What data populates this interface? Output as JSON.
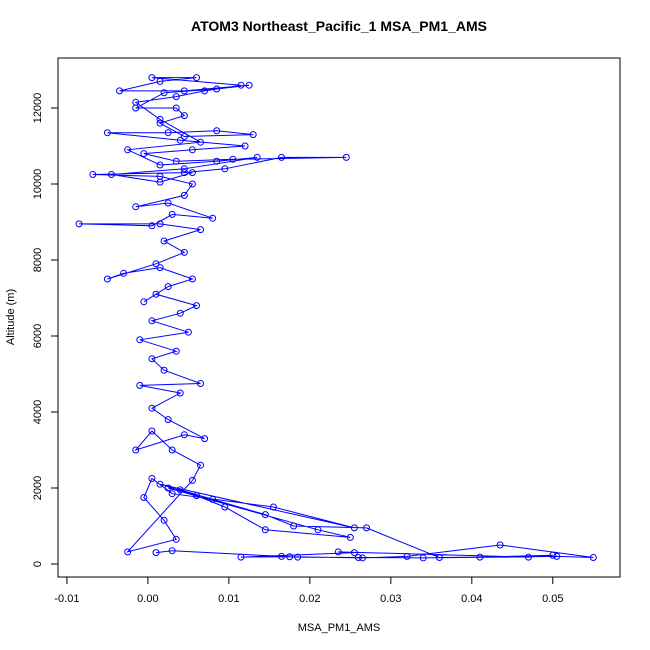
{
  "chart_data": {
    "type": "line",
    "title": "ATOM3 Northeast_Pacific_1 MSA_PM1_AMS",
    "x_label": "MSA_PM1_AMS",
    "y_label": "Altitude (m)",
    "color": "#0000ff",
    "x": [
      0.001,
      0.003,
      0.0165,
      0.0185,
      0.026,
      0.034,
      0.0505,
      0.055,
      0.0435,
      0.032,
      0.0265,
      0.0175,
      0.0115,
      0.0255,
      0.0235,
      0.047,
      0.05,
      0.041,
      0.036,
      0.027,
      0.018,
      0.0145,
      0.008,
      0.004,
      0.0025,
      0.021,
      0.025,
      0.0145,
      0.0095,
      0.006,
      0.0015,
      0.0255,
      0.0155,
      0.003,
      0.0005,
      -0.0005,
      0.002,
      0.0035,
      -0.0025,
      0.0055,
      0.0065,
      0.003,
      0.0005,
      -0.0015,
      0.0045,
      0.007,
      0.0025,
      0.0005,
      0.004,
      -0.001,
      0.0065,
      0.002,
      0.0005,
      0.0035,
      -0.001,
      0.005,
      0.0005,
      0.004,
      0.006,
      0.001,
      -0.0005,
      0.0025,
      0.0055,
      0.0015,
      -0.003,
      -0.005,
      0.001,
      0.0045,
      0.002,
      0.0065,
      0.0015,
      -0.0085,
      0.0005,
      0.003,
      0.008,
      0.0025,
      -0.0015,
      0.0045,
      0.0055,
      0.0015,
      -0.0068,
      0.0045,
      0.0095,
      0.0165,
      0.0245,
      0.0105,
      0.0035,
      -0.0005,
      0.0055,
      0.012,
      0.004,
      -0.005,
      0.0025,
      0.0085,
      0.013,
      0.0045,
      0.0015,
      0.0045,
      0.0035,
      -0.0015,
      0.002,
      0.0085,
      0.0125,
      0.0045,
      -0.0035,
      0.0015,
      0.006,
      0.0005,
      0.0115,
      0.007,
      0.0035,
      -0.0015,
      0.0015,
      0.0065,
      -0.0025,
      0.0015,
      0.0085,
      0.0135,
      0.0045,
      -0.0045,
      0.0015,
      0.0055
    ],
    "values": [
      300,
      350,
      200,
      180,
      170,
      160,
      200,
      170,
      500,
      200,
      160,
      190,
      180,
      300,
      320,
      180,
      230,
      180,
      170,
      950,
      1000,
      1300,
      1700,
      1950,
      2000,
      900,
      700,
      900,
      1500,
      1800,
      2100,
      950,
      1500,
      1850,
      2250,
      1750,
      1150,
      650,
      320,
      2200,
      2600,
      3000,
      3500,
      3000,
      3400,
      3300,
      3800,
      4100,
      4500,
      4700,
      4750,
      5100,
      5400,
      5600,
      5900,
      6100,
      6400,
      6600,
      6800,
      7100,
      6900,
      7300,
      7500,
      7800,
      7650,
      7500,
      7900,
      8200,
      8500,
      8800,
      8950,
      8950,
      8900,
      9200,
      9100,
      9500,
      9400,
      9700,
      10000,
      10200,
      10250,
      10300,
      10400,
      10700,
      10700,
      10650,
      10600,
      10800,
      10900,
      11000,
      11150,
      11350,
      11350,
      11400,
      11300,
      11250,
      11600,
      11800,
      12000,
      12000,
      12400,
      12500,
      12600,
      12450,
      12450,
      12700,
      12800,
      12800,
      12600,
      12450,
      12300,
      12150,
      11700,
      11100,
      10900,
      10500,
      10600,
      10700,
      10400,
      10250,
      10050,
      10300
    ],
    "xlim": [
      -0.0111,
      0.0583
    ],
    "ylim": [
      -342,
      13316
    ],
    "xticks": [
      -0.01,
      {
        "value": 0,
        "label": "0.00"
      },
      0.01,
      0.02,
      0.03,
      0.04,
      0.05
    ],
    "yticks": [
      0,
      2000,
      4000,
      6000,
      8000,
      10000,
      12000
    ]
  }
}
